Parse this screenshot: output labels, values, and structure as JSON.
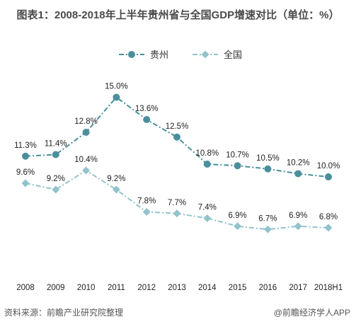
{
  "title": "图表1：2008-2018年上半年贵州省与全国GDP增速对比（单位：%）",
  "source": "资料来源：前瞻产业研究院整理",
  "brand": "@前瞻经济学人APP",
  "chart_data": {
    "type": "line",
    "categories": [
      "2008",
      "2009",
      "2010",
      "2011",
      "2012",
      "2013",
      "2014",
      "2015",
      "2016",
      "2017",
      "2018H1"
    ],
    "series": [
      {
        "name": "贵州",
        "values": [
          11.3,
          11.4,
          12.8,
          15.0,
          13.6,
          12.5,
          10.8,
          10.7,
          10.5,
          10.2,
          10.0
        ],
        "labels": [
          "11.3%",
          "11.4%",
          "12.8%",
          "15.0%",
          "13.6%",
          "12.5%",
          "10.8%",
          "10.7%",
          "10.5%",
          "10.2%",
          "10.0%"
        ],
        "color": "#4a8f9b",
        "marker": "circle",
        "line_style": "dash-dot"
      },
      {
        "name": "全国",
        "values": [
          9.6,
          9.2,
          10.4,
          9.2,
          7.8,
          7.7,
          7.4,
          6.9,
          6.7,
          6.9,
          6.8
        ],
        "labels": [
          "9.6%",
          "9.2%",
          "10.4%",
          "9.2%",
          "7.8%",
          "7.7%",
          "7.4%",
          "6.9%",
          "6.7%",
          "6.9%",
          "6.8%"
        ],
        "color": "#92c3cc",
        "marker": "diamond",
        "line_style": "dash-dot"
      }
    ],
    "ylim": [
      6.0,
      15.6
    ],
    "grid": false,
    "legend": "top-center"
  }
}
